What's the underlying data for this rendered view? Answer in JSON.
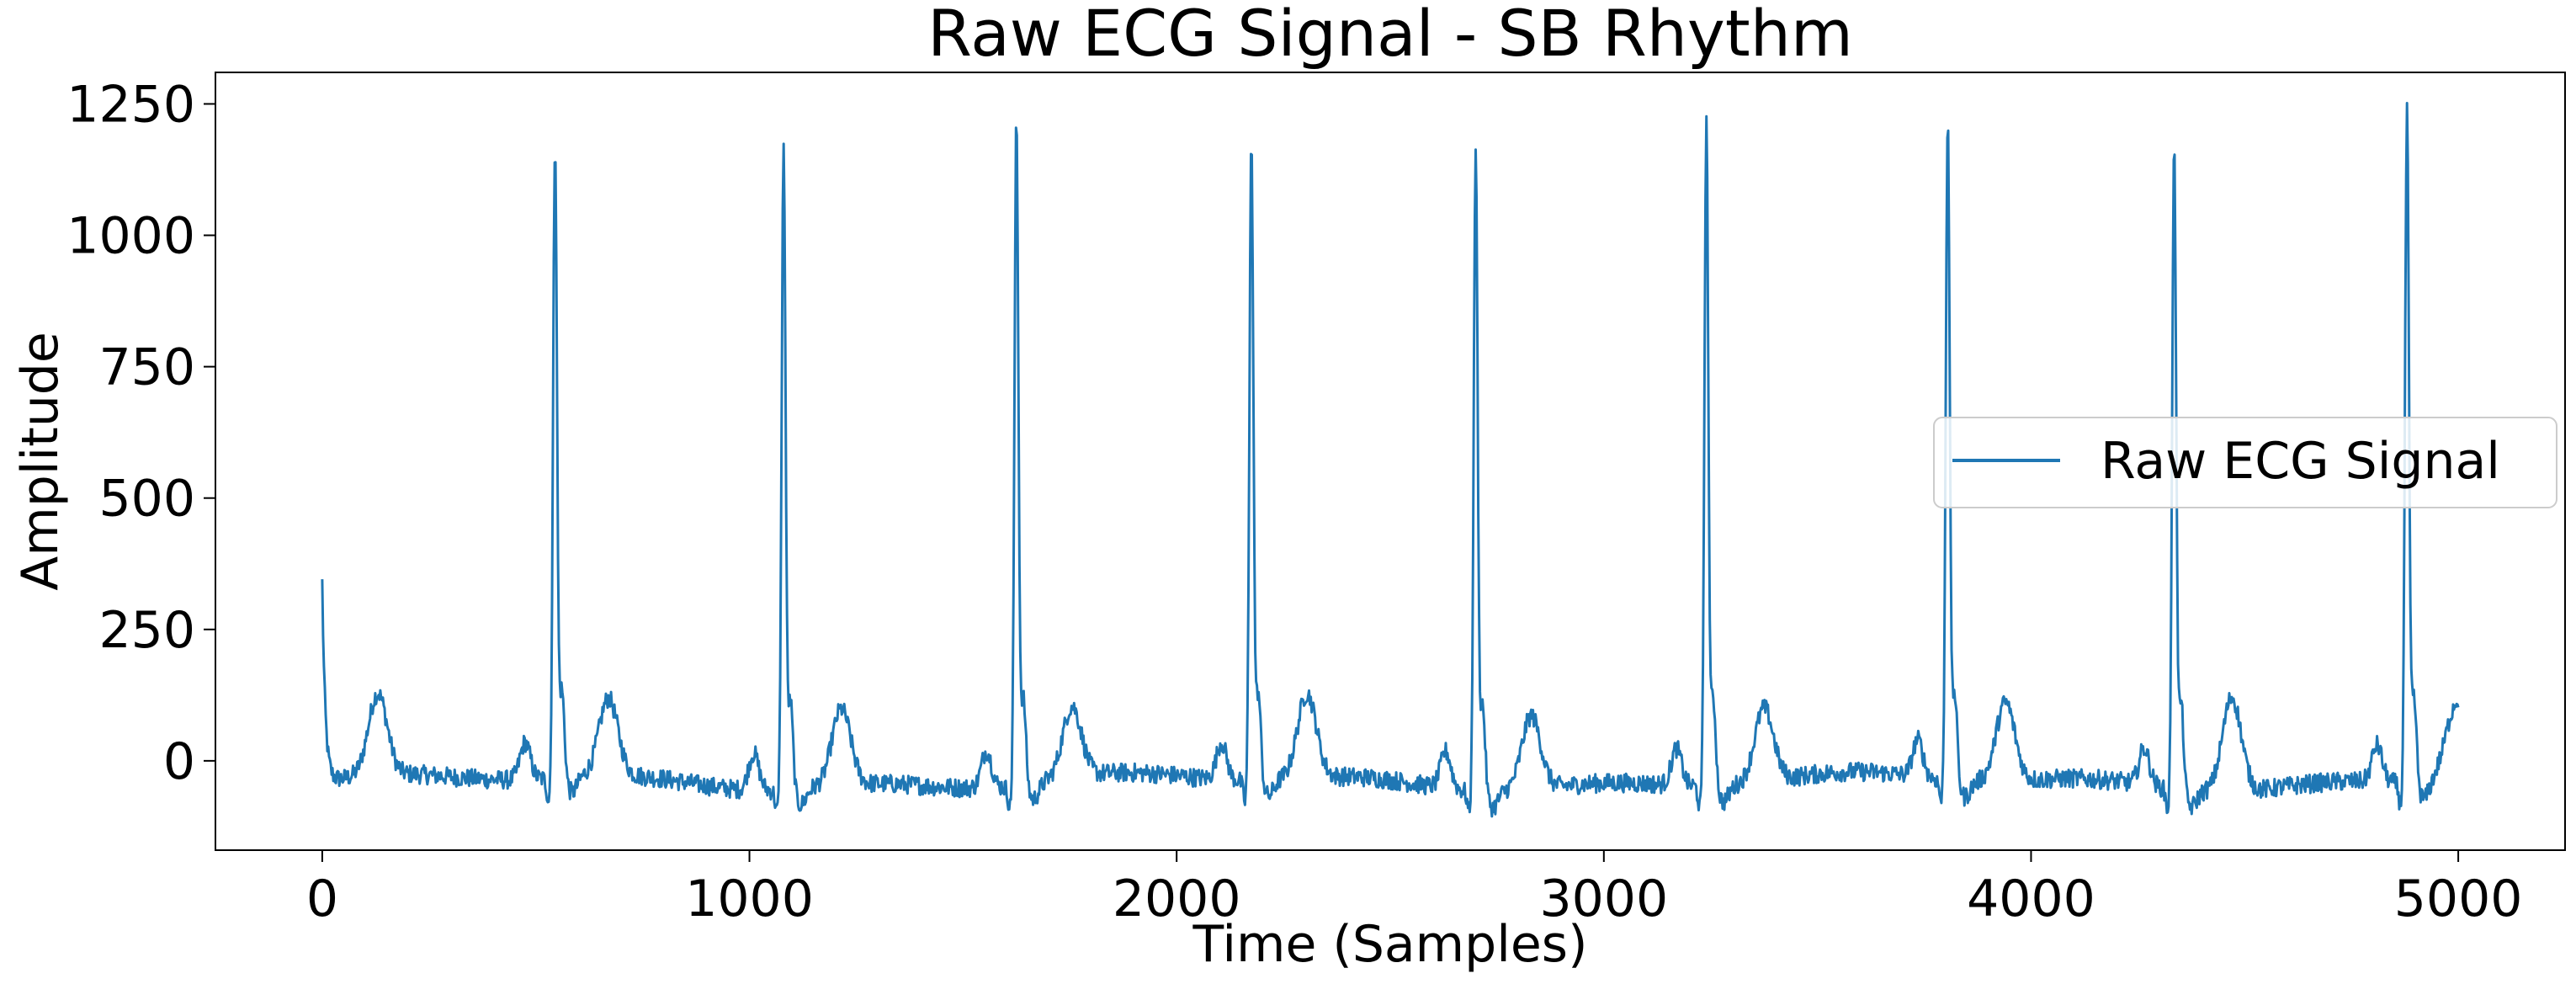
{
  "chart_data": {
    "type": "line",
    "title": "Raw ECG Signal - SB Rhythm",
    "xlabel": "Time (Samples)",
    "ylabel": "Amplitude",
    "xlim": [
      -250,
      5250
    ],
    "ylim": [
      -170,
      1310
    ],
    "xticks": [
      0,
      1000,
      2000,
      3000,
      4000,
      5000
    ],
    "yticks": [
      0,
      250,
      500,
      750,
      1000,
      1250
    ],
    "xtick_labels": [
      "0",
      "1000",
      "2000",
      "3000",
      "4000",
      "5000"
    ],
    "ytick_labels": [
      "0",
      "250",
      "500",
      "750",
      "1000",
      "1250"
    ],
    "grid": false,
    "legend": {
      "placement": "center-right",
      "entries": [
        "Raw ECG Signal"
      ]
    },
    "series": [
      {
        "name": "Raw ECG Signal",
        "color": "#1f77b4",
        "x_start": 0,
        "x_end": 5000,
        "start_value": 340,
        "end_value": 130,
        "r_peaks": [
          {
            "x": 545,
            "y": 1170
          },
          {
            "x": 1080,
            "y": 1175
          },
          {
            "x": 1625,
            "y": 1225
          },
          {
            "x": 2175,
            "y": 1185
          },
          {
            "x": 2700,
            "y": 1180
          },
          {
            "x": 3240,
            "y": 1215
          },
          {
            "x": 3805,
            "y": 1225
          },
          {
            "x": 4335,
            "y": 1200
          },
          {
            "x": 4880,
            "y": 1240
          }
        ],
        "t_waves": [
          {
            "x": 130,
            "y": 115
          },
          {
            "x": 670,
            "y": 105
          },
          {
            "x": 1215,
            "y": 105
          },
          {
            "x": 1755,
            "y": 95
          },
          {
            "x": 2305,
            "y": 120
          },
          {
            "x": 2830,
            "y": 100
          },
          {
            "x": 3375,
            "y": 100
          },
          {
            "x": 3940,
            "y": 110
          },
          {
            "x": 4470,
            "y": 140
          }
        ]
      }
    ]
  }
}
